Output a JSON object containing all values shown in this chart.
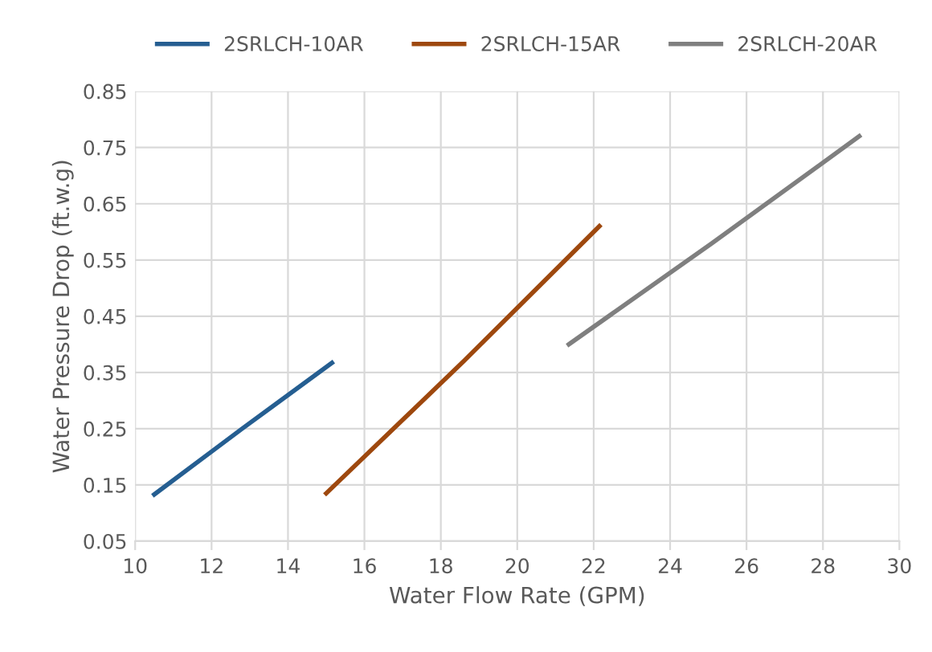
{
  "chart_data": {
    "type": "line",
    "xlabel": "Water Flow Rate (GPM)",
    "ylabel": "Water Pressure Drop (ft.w.g)",
    "xlim": [
      10,
      30
    ],
    "xticks": [
      10,
      12,
      14,
      16,
      18,
      20,
      22,
      24,
      26,
      28,
      30
    ],
    "ylim": [
      0.05,
      0.85
    ],
    "yticks": [
      {
        "value": 0.05,
        "label": "0.05"
      },
      {
        "value": 0.15,
        "label": "0.15"
      },
      {
        "value": 0.25,
        "label": "0.25"
      },
      {
        "value": 0.35,
        "label": "0.35"
      },
      {
        "value": 0.45,
        "label": "0.45"
      },
      {
        "value": 0.55,
        "label": "0.55"
      },
      {
        "value": 0.65,
        "label": "0.65"
      },
      {
        "value": 0.75,
        "label": "0.75"
      },
      {
        "value": 0.85,
        "label": "0.85"
      }
    ],
    "grid": true,
    "legend": "top",
    "marker": "none",
    "line_style": "solid",
    "series": [
      {
        "name": "2SRLCH-10AR",
        "color": "#255e91",
        "x": [
          10.5,
          12.8,
          15.15
        ],
        "values": [
          0.133,
          0.25,
          0.367
        ]
      },
      {
        "name": "2SRLCH-15AR",
        "color": "#9e480e",
        "x": [
          15.0,
          18.6,
          22.15
        ],
        "values": [
          0.135,
          0.37,
          0.61
        ]
      },
      {
        "name": "2SRLCH-20AR",
        "color": "#7f7f7f",
        "x": [
          21.35,
          25.1,
          28.95
        ],
        "values": [
          0.4,
          0.58,
          0.77
        ]
      }
    ]
  }
}
